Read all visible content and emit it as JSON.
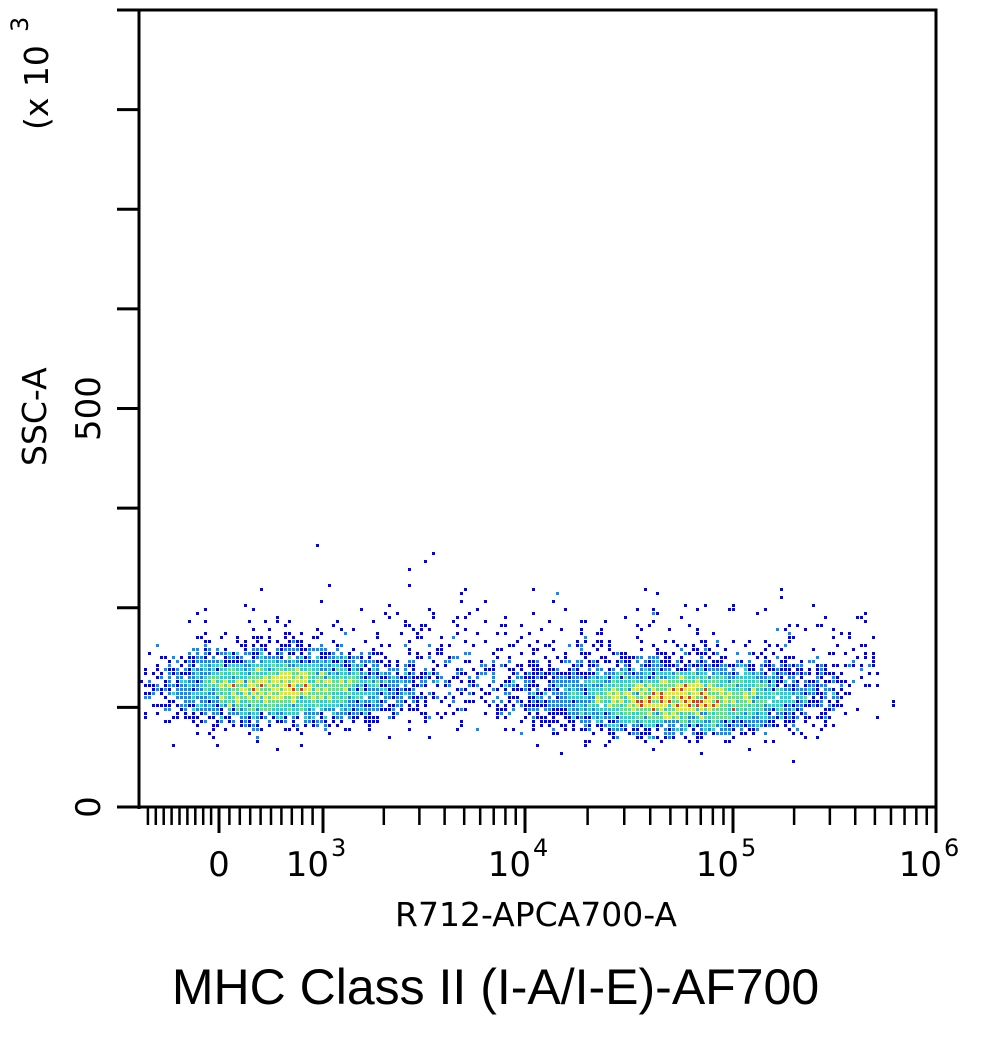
{
  "caption": "MHC Class II (I-A/I-E)-AF700",
  "chart_data": {
    "type": "scatter",
    "subtype": "flow-cytometry-density-dot-plot",
    "xlabel": "R712-APCA700-A",
    "ylabel": "SSC-A",
    "y_multiplier_label": "(x 10",
    "y_multiplier_exp": "3",
    "x_scale": "biexponential",
    "x_tick_labels": [
      {
        "value": 0,
        "base": "0",
        "exp": ""
      },
      {
        "value": 1000,
        "base": "10",
        "exp": "3"
      },
      {
        "value": 10000,
        "base": "10",
        "exp": "4"
      },
      {
        "value": 100000,
        "base": "10",
        "exp": "5"
      },
      {
        "value": 1000000,
        "base": "10",
        "exp": "6"
      }
    ],
    "y_scale": "linear",
    "ylim": [
      0,
      1000
    ],
    "y_tick_labels": [
      {
        "value": 0,
        "label": "0"
      },
      {
        "value": 500,
        "label": "500"
      }
    ],
    "y_minor_ticks": [
      125,
      250,
      375,
      625,
      750,
      875,
      1000
    ],
    "density_colors": [
      "#0000ff",
      "#0090ff",
      "#00e0e0",
      "#40f080",
      "#e0f000",
      "#ff3000"
    ],
    "populations": [
      {
        "name_visible": false,
        "x_center": 600,
        "y_center": 150,
        "relative_size": 0.45
      },
      {
        "name_visible": false,
        "x_center": 55000,
        "y_center": 135,
        "relative_size": 0.55
      }
    ],
    "grid": false,
    "legend": "none"
  }
}
